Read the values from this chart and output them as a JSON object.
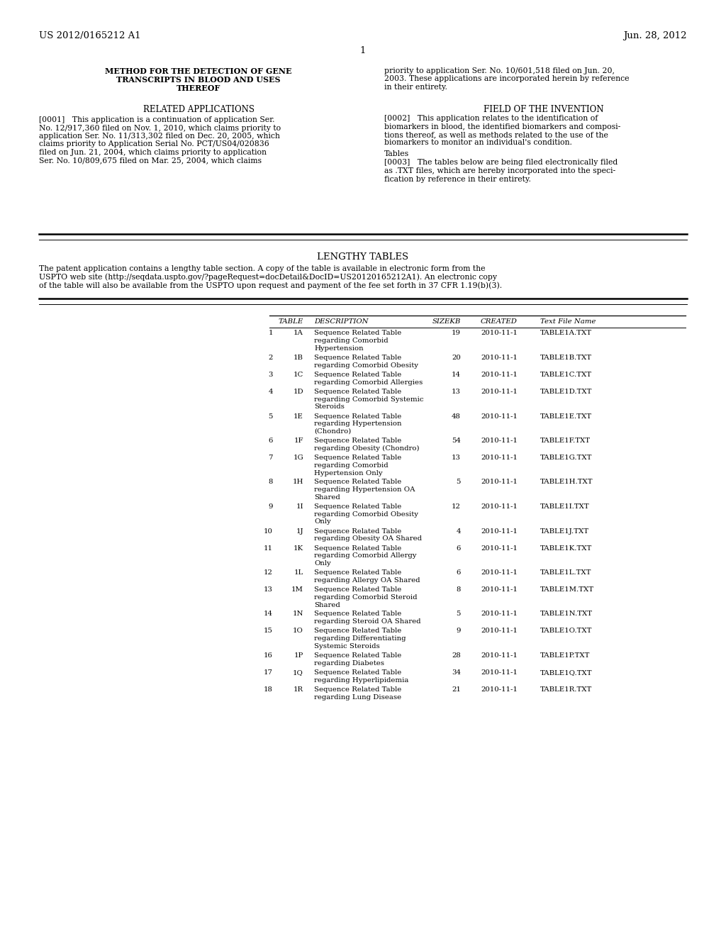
{
  "background_color": "#ffffff",
  "header_left": "US 2012/0165212 A1",
  "header_right": "Jun. 28, 2012",
  "page_number": "1",
  "title_left_line1": "METHOD FOR THE DETECTION OF GENE",
  "title_left_line2": "TRANSCRIPTS IN BLOOD AND USES",
  "title_left_line3": "THEREOF",
  "section1_heading": "RELATED APPLICATIONS",
  "para0001_lines": [
    "[0001]   This application is a continuation of application Ser.",
    "No. 12/917,360 filed on Nov. 1, 2010, which claims priority to",
    "application Ser. No. 11/313,302 filed on Dec. 20, 2005, which",
    "claims priority to Application Serial No. PCT/US04/020836",
    "filed on Jun. 21, 2004, which claims priority to application",
    "Ser. No. 10/809,675 filed on Mar. 25, 2004, which claims"
  ],
  "right_top_lines": [
    "priority to application Ser. No. 10/601,518 filed on Jun. 20,",
    "2003. These applications are incorporated herein by reference",
    "in their entirety."
  ],
  "section2_heading": "FIELD OF THE INVENTION",
  "para0002_lines": [
    "[0002]   This application relates to the identification of",
    "biomarkers in blood, the identified biomarkers and composi-",
    "tions thereof, as well as methods related to the use of the",
    "biomarkers to monitor an individual's condition."
  ],
  "tables_subheading": "Tables",
  "para0003_lines": [
    "[0003]   The tables below are being filed electronically filed",
    "as .TXT files, which are hereby incorporated into the speci-",
    "fication by reference in their entirety."
  ],
  "lengthy_tables_heading": "LENGTHY TABLES",
  "lengthy_tables_lines": [
    "The patent application contains a lengthy table section. A copy of the table is available in electronic form from the",
    "USPTO web site (http://seqdata.uspto.gov/?pageRequest=docDetail&DocID=US20120165212A1). An electronic copy",
    "of the table will also be available from the USPTO upon request and payment of the fee set forth in 37 CFR 1.19(b)(3)."
  ],
  "table_headers": [
    "TABLE",
    "DESCRIPTION",
    "SIZEKB",
    "CREATED",
    "Text File Name"
  ],
  "table_rows": [
    [
      "1",
      "1A",
      "Sequence Related Table\nregarding Comorbid\nHypertension",
      "19",
      "2010-11-1",
      "TABLE1A.TXT"
    ],
    [
      "2",
      "1B",
      "Sequence Related Table\nregarding Comorbid Obesity",
      "20",
      "2010-11-1",
      "TABLE1B.TXT"
    ],
    [
      "3",
      "1C",
      "Sequence Related Table\nregarding Comorbid Allergies",
      "14",
      "2010-11-1",
      "TABLE1C.TXT"
    ],
    [
      "4",
      "1D",
      "Sequence Related Table\nregarding Comorbid Systemic\nSteroids",
      "13",
      "2010-11-1",
      "TABLE1D.TXT"
    ],
    [
      "5",
      "1E",
      "Sequence Related Table\nregarding Hypertension\n(Chondro)",
      "48",
      "2010-11-1",
      "TABLE1E.TXT"
    ],
    [
      "6",
      "1F",
      "Sequence Related Table\nregarding Obesity (Chondro)",
      "54",
      "2010-11-1",
      "TABLE1F.TXT"
    ],
    [
      "7",
      "1G",
      "Sequence Related Table\nregarding Comorbid\nHypertension Only",
      "13",
      "2010-11-1",
      "TABLE1G.TXT"
    ],
    [
      "8",
      "1H",
      "Sequence Related Table\nregarding Hypertension OA\nShared",
      "5",
      "2010-11-1",
      "TABLE1H.TXT"
    ],
    [
      "9",
      "1I",
      "Sequence Related Table\nregarding Comorbid Obesity\nOnly",
      "12",
      "2010-11-1",
      "TABLE1I.TXT"
    ],
    [
      "10",
      "1J",
      "Sequence Related Table\nregarding Obesity OA Shared",
      "4",
      "2010-11-1",
      "TABLE1J.TXT"
    ],
    [
      "11",
      "1K",
      "Sequence Related Table\nregarding Comorbid Allergy\nOnly",
      "6",
      "2010-11-1",
      "TABLE1K.TXT"
    ],
    [
      "12",
      "1L",
      "Sequence Related Table\nregarding Allergy OA Shared",
      "6",
      "2010-11-1",
      "TABLE1L.TXT"
    ],
    [
      "13",
      "1M",
      "Sequence Related Table\nregarding Comorbid Steroid\nShared",
      "8",
      "2010-11-1",
      "TABLE1M.TXT"
    ],
    [
      "14",
      "1N",
      "Sequence Related Table\nregarding Steroid OA Shared",
      "5",
      "2010-11-1",
      "TABLE1N.TXT"
    ],
    [
      "15",
      "1O",
      "Sequence Related Table\nregarding Differentiating\nSystemic Steroids",
      "9",
      "2010-11-1",
      "TABLE1O.TXT"
    ],
    [
      "16",
      "1P",
      "Sequence Related Table\nregarding Diabetes",
      "28",
      "2010-11-1",
      "TABLE1P.TXT"
    ],
    [
      "17",
      "1Q",
      "Sequence Related Table\nregarding Hyperlipidemia",
      "34",
      "2010-11-1",
      "TABLE1Q.TXT"
    ],
    [
      "18",
      "1R",
      "Sequence Related Table\nregarding Lung Disease",
      "21",
      "2010-11-1",
      "TABLE1R.TXT"
    ]
  ],
  "row_line_counts": [
    3,
    2,
    2,
    3,
    3,
    2,
    3,
    3,
    3,
    2,
    3,
    2,
    3,
    2,
    3,
    2,
    2,
    2
  ]
}
